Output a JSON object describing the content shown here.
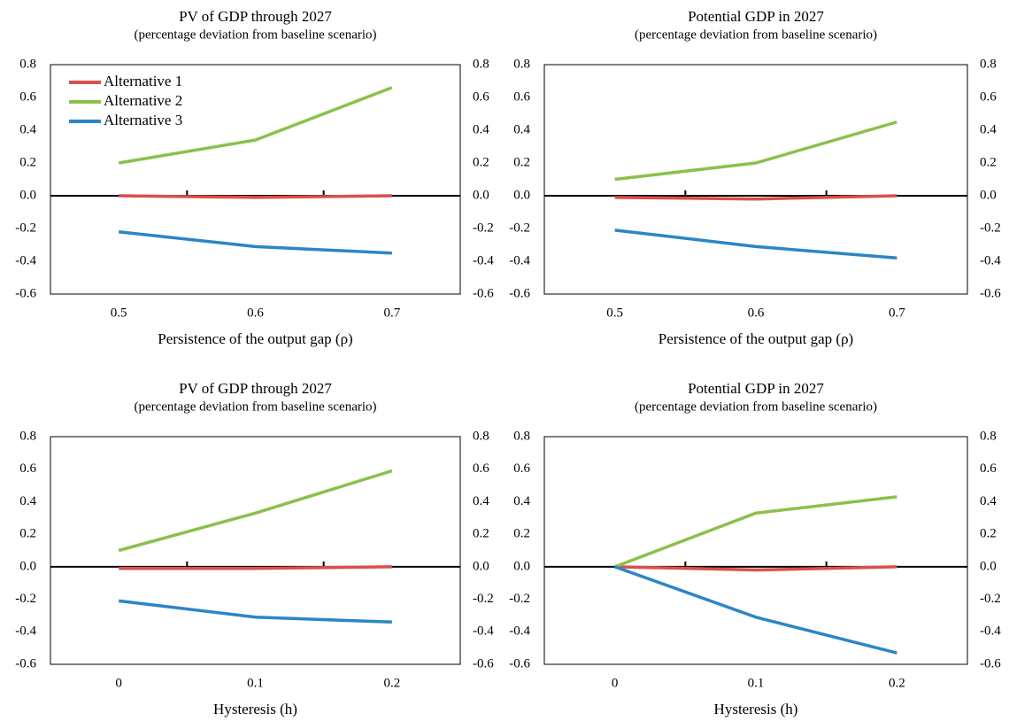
{
  "chart_data": [
    {
      "type": "line",
      "title": "PV of GDP through 2027",
      "subtitle": "(percentage deviation from baseline scenario)",
      "x_label": "Persistence of the output gap (ρ)",
      "categories": [
        "0.5",
        "0.6",
        "0.7"
      ],
      "series": [
        {
          "name": "Alternative 1",
          "color": "#d9504a",
          "values": [
            0,
            -0.01,
            0
          ]
        },
        {
          "name": "Alternative 2",
          "color": "#8cc04a",
          "values": [
            0.2,
            0.34,
            0.66
          ]
        },
        {
          "name": "Alternative 3",
          "color": "#2b86c5",
          "values": [
            -0.22,
            -0.31,
            -0.35
          ]
        }
      ],
      "legend": "upper left",
      "ylim": [
        -0.6,
        0.8
      ],
      "yticks": [
        -0.6,
        -0.4,
        -0.2,
        {
          "value": 0,
          "label": "0.0"
        },
        0.2,
        0.4,
        0.6,
        0.8
      ],
      "y2lim": [
        -0.6,
        0.8
      ],
      "y2ticks": [
        -0.6,
        -0.4,
        -0.2,
        {
          "value": 0,
          "label": "0.0"
        },
        0.2,
        0.4,
        0.6,
        0.8
      ]
    },
    {
      "type": "line",
      "title": "Potential GDP in 2027",
      "subtitle": "(percentage deviation from baseline scenario)",
      "x_label": "Persistence of the output gap (ρ)",
      "categories": [
        "0.5",
        "0.6",
        "0.7"
      ],
      "series": [
        {
          "color": "#d9504a",
          "values": [
            -0.01,
            -0.02,
            0
          ]
        },
        {
          "color": "#8cc04a",
          "values": [
            0.1,
            0.2,
            0.45
          ]
        },
        {
          "color": "#2b86c5",
          "values": [
            -0.21,
            -0.31,
            -0.38
          ]
        }
      ],
      "ylim": [
        -0.6,
        0.8
      ],
      "yticks": [
        -0.6,
        -0.4,
        -0.2,
        {
          "value": 0,
          "label": "0.0"
        },
        0.2,
        0.4,
        0.6,
        0.8
      ],
      "y2lim": [
        -0.6,
        0.8
      ],
      "y2ticks": [
        -0.6,
        -0.4,
        -0.2,
        {
          "value": 0,
          "label": "0.0"
        },
        0.2,
        0.4,
        0.6,
        0.8
      ]
    },
    {
      "type": "line",
      "title": "PV of GDP through 2027",
      "subtitle": "(percentage deviation from baseline scenario)",
      "x_label": "Hysteresis (h)",
      "categories": [
        "0",
        "0.1",
        "0.2"
      ],
      "series": [
        {
          "color": "#d9504a",
          "values": [
            -0.01,
            -0.01,
            0
          ]
        },
        {
          "color": "#8cc04a",
          "values": [
            0.1,
            0.33,
            0.59
          ]
        },
        {
          "color": "#2b86c5",
          "values": [
            -0.21,
            -0.31,
            -0.34
          ]
        }
      ],
      "ylim": [
        -0.6,
        0.8
      ],
      "yticks": [
        -0.6,
        -0.4,
        -0.2,
        {
          "value": 0,
          "label": "0.0"
        },
        0.2,
        0.4,
        0.6,
        0.8
      ],
      "y2lim": [
        -0.6,
        0.8
      ],
      "y2ticks": [
        -0.6,
        -0.4,
        -0.2,
        {
          "value": 0,
          "label": "0.0"
        },
        0.2,
        0.4,
        0.6,
        0.8
      ]
    },
    {
      "type": "line",
      "title": "Potential GDP in 2027",
      "subtitle": "(percentage deviation from baseline scenario)",
      "x_label": "Hysteresis (h)",
      "categories": [
        "0",
        "0.1",
        "0.2"
      ],
      "series": [
        {
          "color": "#d9504a",
          "values": [
            0,
            -0.02,
            0
          ]
        },
        {
          "color": "#8cc04a",
          "values": [
            0,
            0.33,
            0.43
          ]
        },
        {
          "color": "#2b86c5",
          "values": [
            0,
            -0.31,
            -0.53
          ]
        }
      ],
      "ylim": [
        -0.6,
        0.8
      ],
      "yticks": [
        -0.6,
        -0.4,
        -0.2,
        {
          "value": 0,
          "label": "0.0"
        },
        0.2,
        0.4,
        0.6,
        0.8
      ],
      "y2lim": [
        -0.6,
        0.8
      ],
      "y2ticks": [
        -0.6,
        -0.4,
        -0.2,
        {
          "value": 0,
          "label": "0.0"
        },
        0.2,
        0.4,
        0.6,
        0.8
      ]
    }
  ]
}
